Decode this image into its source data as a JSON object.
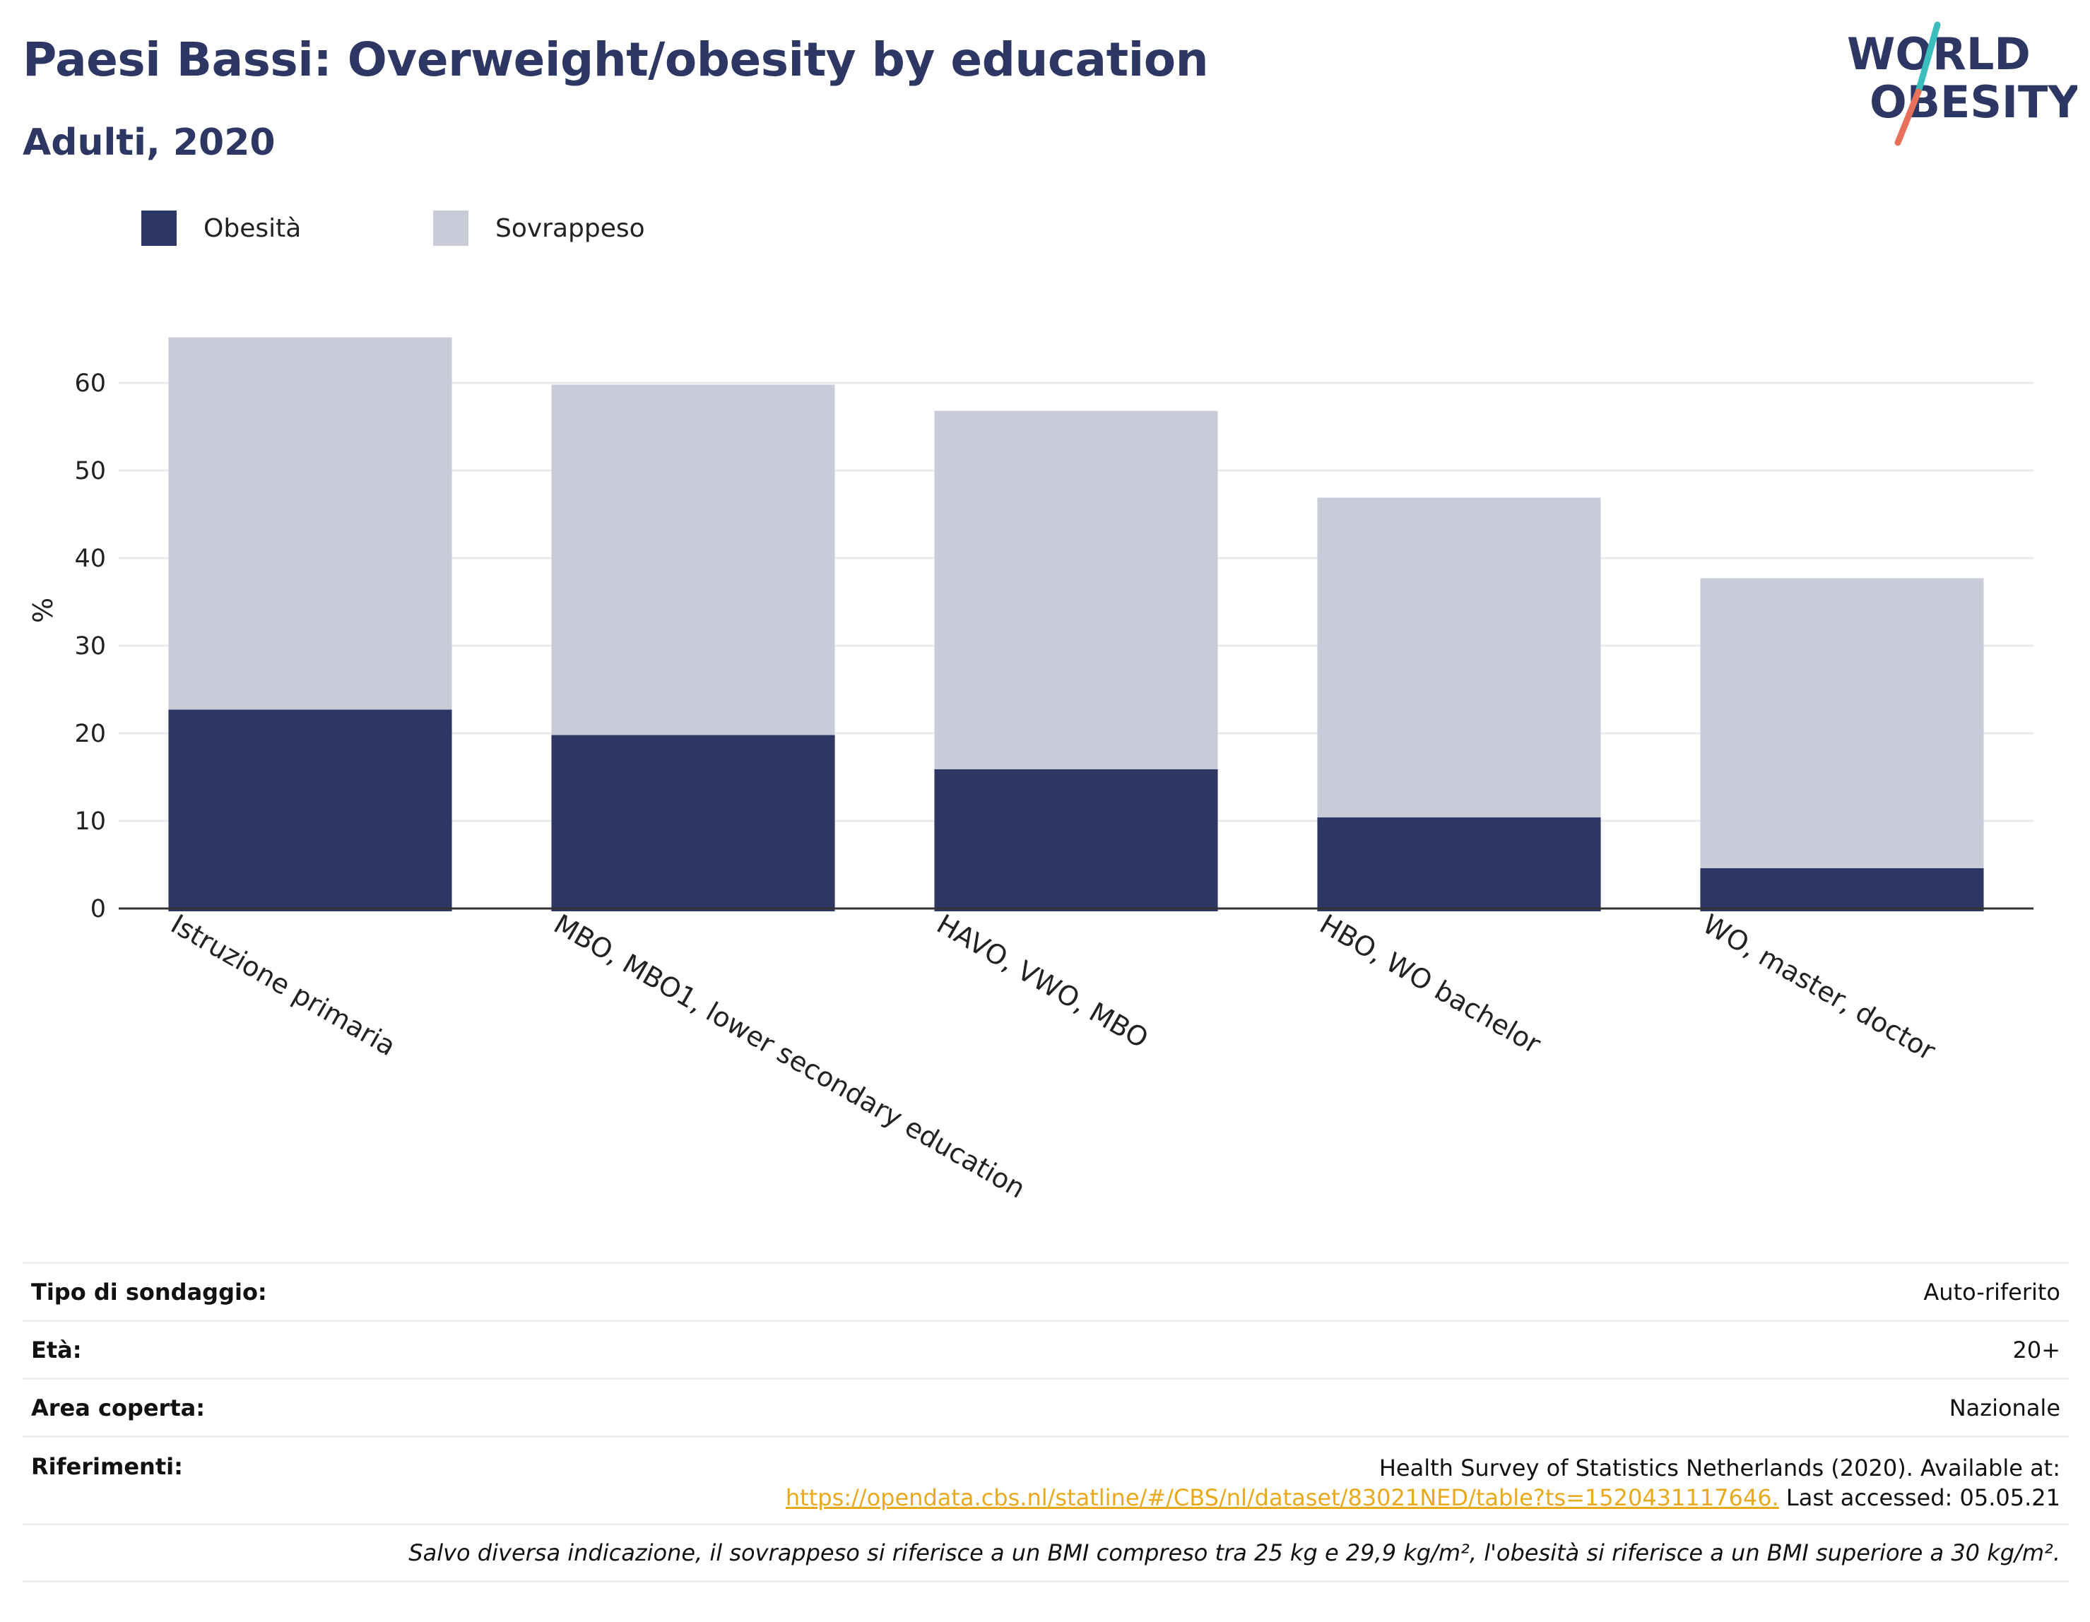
{
  "header": {
    "title": "Paesi Bassi: Overweight/obesity by education",
    "subtitle": "Adulti, 2020"
  },
  "logo": {
    "line1": "WORLD",
    "line2": "OBESITY"
  },
  "colors": {
    "obesity": "#2d3763",
    "overweight": "#c9ccd8",
    "title": "#2d3763",
    "link": "#e8a91d",
    "logo_teal": "#3bbdbd",
    "logo_coral": "#e8715c"
  },
  "legend": [
    {
      "label": "Obesità",
      "color": "#2d3763"
    },
    {
      "label": "Sovrappeso",
      "color": "#c9ccd8"
    }
  ],
  "chart_data": {
    "type": "bar",
    "stacked": true,
    "categories": [
      "Istruzione primaria",
      "MBO, MBO1, lower secondary education",
      "HAVO, VWO, MBO",
      "HBO, WO bachelor",
      "WO, master, doctor"
    ],
    "series": [
      {
        "name": "Obesità",
        "values": [
          22.7,
          19.8,
          15.9,
          10.4,
          4.6
        ]
      },
      {
        "name": "Sovrappeso",
        "values": [
          42.5,
          40.0,
          40.9,
          36.5,
          33.1
        ]
      }
    ],
    "ylabel": "%",
    "ylim": [
      0,
      66
    ],
    "yticks": [
      0,
      10,
      20,
      30,
      40,
      50,
      60
    ],
    "grid": true,
    "legend_position": "top-left"
  },
  "info": {
    "rows": [
      {
        "label": "Tipo di sondaggio:",
        "value": "Auto-riferito"
      },
      {
        "label": "Età:",
        "value": "20+"
      },
      {
        "label": "Area coperta:",
        "value": "Nazionale"
      }
    ],
    "references": {
      "label": "Riferimenti:",
      "text": "Health Survey of Statistics Netherlands (2020). Available at:",
      "link": "https://opendata.cbs.nl/statline/#/CBS/nl/dataset/83021NED/table?ts=1520431117646.",
      "accessed": "Last accessed: 05.05.21"
    },
    "note": "Salvo diversa indicazione, il sovrappeso si riferisce a un BMI compreso tra 25 kg e 29,9 kg/m², l'obesità si riferisce a un BMI superiore a 30 kg/m²."
  }
}
